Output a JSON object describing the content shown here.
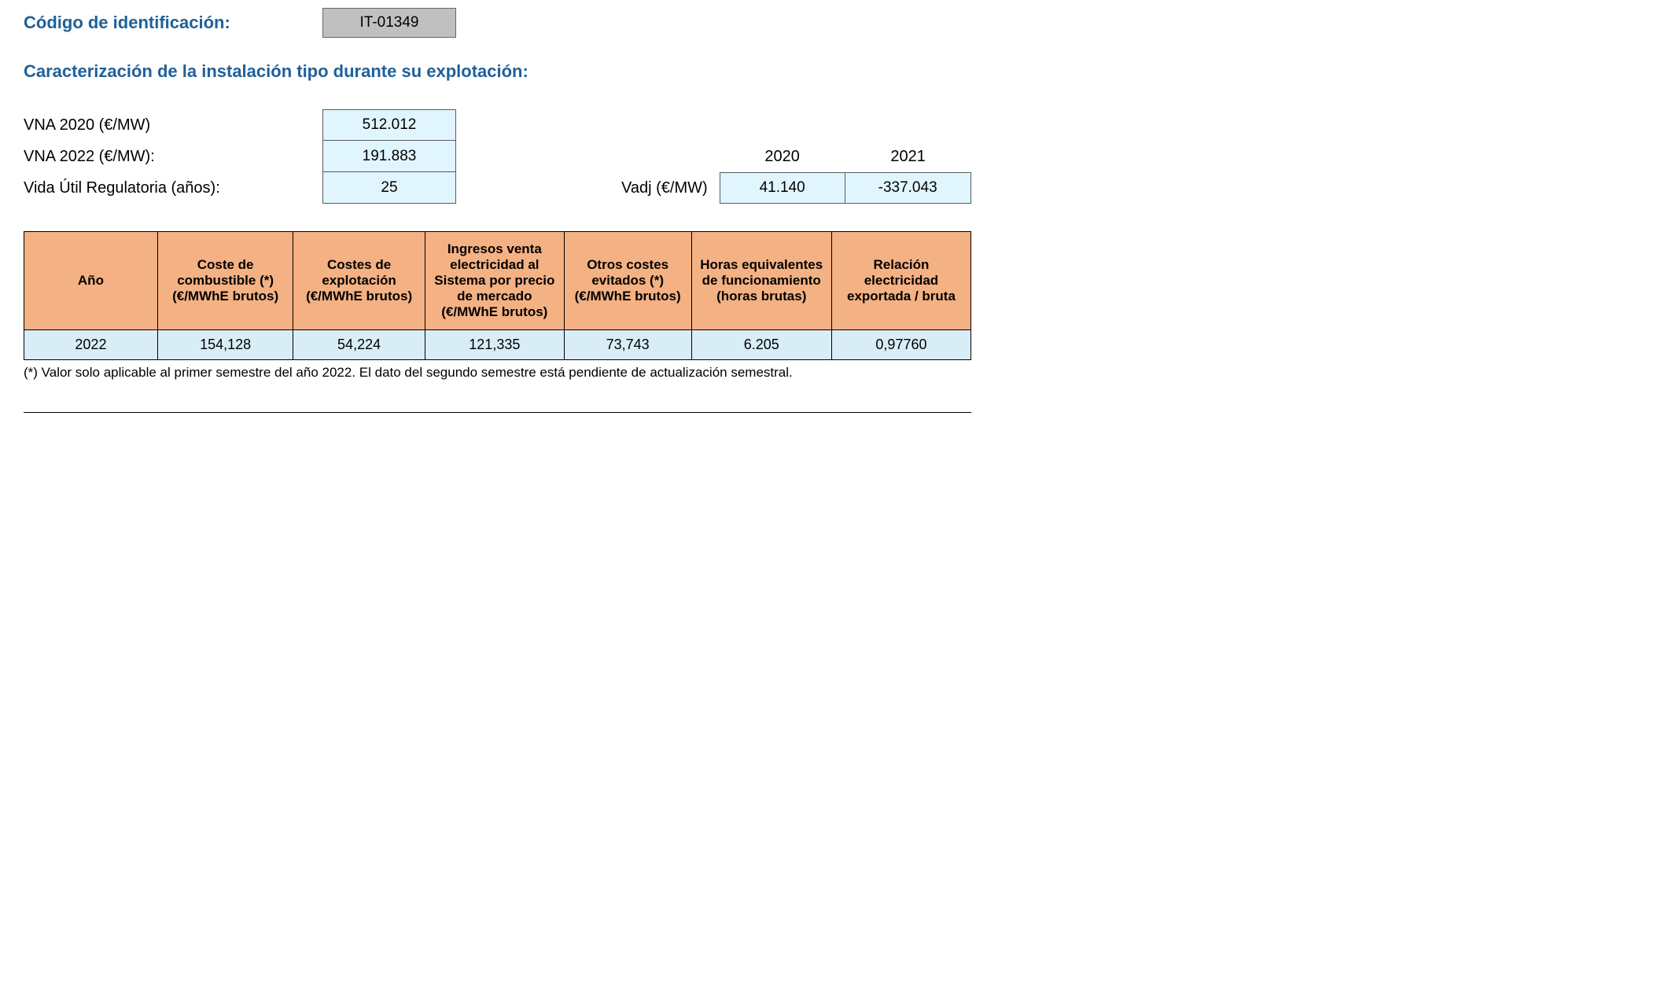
{
  "header": {
    "id_label": "Código de identificación:",
    "id_value": "IT-01349",
    "subtitle": "Caracterización de la instalación tipo durante su explotación:"
  },
  "params": {
    "vna2020_label": "VNA 2020 (€/MW)",
    "vna2020_value": "512.012",
    "vna2022_label": "VNA 2022 (€/MW):",
    "vna2022_value": "191.883",
    "vida_label": "Vida Útil Regulatoria (años):",
    "vida_value": "25"
  },
  "vadj": {
    "label": "Vadj (€/MW)",
    "year_2020": "2020",
    "year_2021": "2021",
    "value_2020": "41.140",
    "value_2021": "-337.043"
  },
  "table": {
    "headers": {
      "col0": "Año",
      "col1": "Coste de combustible (*) (€/MWhE brutos)",
      "col2": "Costes de explotación (€/MWhE brutos)",
      "col3": "Ingresos venta electricidad al Sistema por precio de mercado (€/MWhE brutos)",
      "col4": "Otros costes evitados (*) (€/MWhE brutos)",
      "col5": "Horas equivalentes de funcionamiento (horas brutas)",
      "col6": "Relación electricidad exportada / bruta"
    },
    "row0": {
      "c0": "2022",
      "c1": "154,128",
      "c2": "54,224",
      "c3": "121,335",
      "c4": "73,743",
      "c5": "6.205",
      "c6": "0,97760"
    },
    "col_widths": {
      "c0": "175px",
      "c1": "175px",
      "c2": "170px",
      "c3": "180px",
      "c4": "165px",
      "c5": "180px",
      "c6": "180px"
    },
    "header_bg": "#f4b183",
    "row_bg": "#d9edf7",
    "border_color": "#000000"
  },
  "footnote": "(*) Valor solo aplicable al primer semestre del año 2022. El dato del segundo semestre está pendiente de actualización semestral.",
  "colors": {
    "title_blue": "#1f6099",
    "id_box_bg": "#c0c0c0",
    "value_box_bg": "#e1f5fe"
  }
}
